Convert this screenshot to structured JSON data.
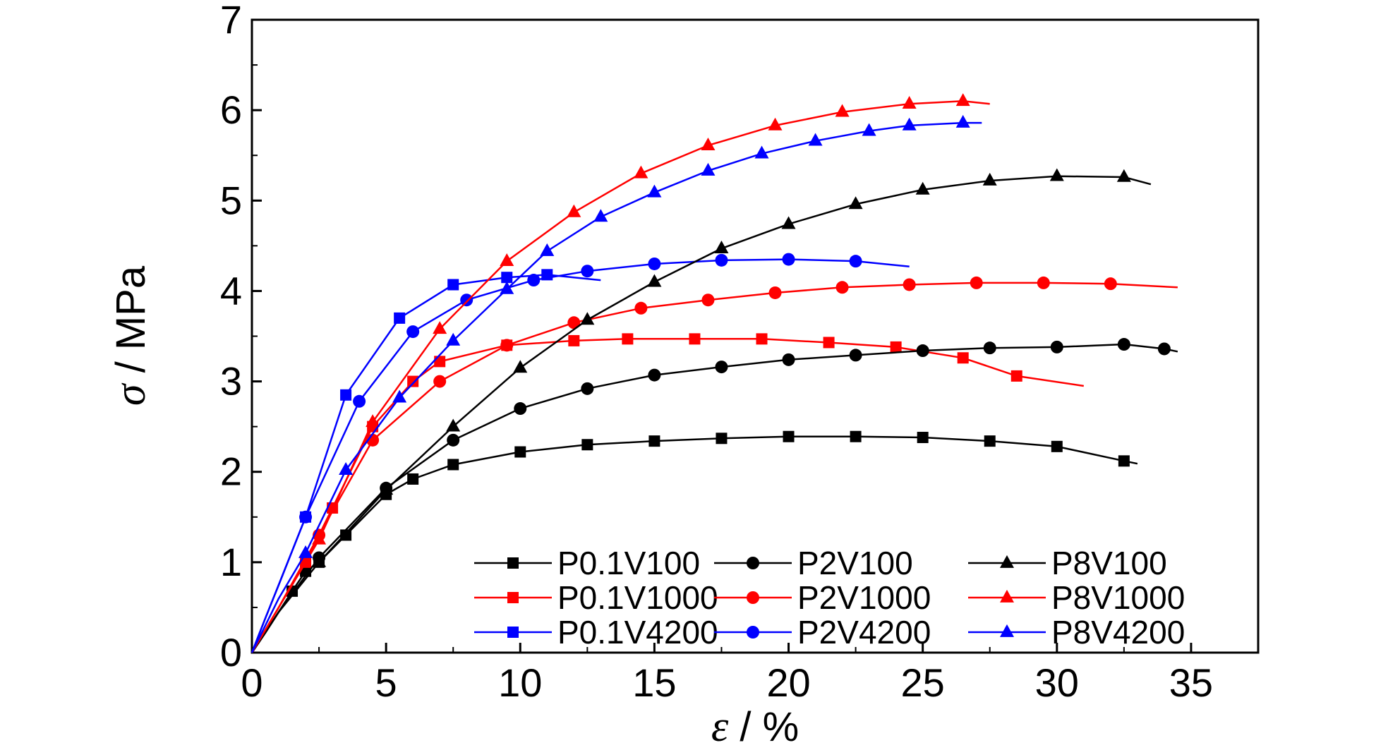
{
  "chart_data": {
    "type": "line",
    "xlabel": {
      "symbol": "ε",
      "rest": " / %"
    },
    "ylabel": {
      "symbol": "σ",
      "rest": " / MPa"
    },
    "xlim": [
      0,
      37.5
    ],
    "ylim": [
      0,
      7
    ],
    "xticks": [
      0,
      5,
      10,
      15,
      20,
      25,
      30,
      35
    ],
    "yticks": [
      0,
      1,
      2,
      3,
      4,
      5,
      6,
      7
    ],
    "grid": false,
    "legend_position": "bottom-right",
    "series": [
      {
        "name": "P0.1V100",
        "color": "#000000",
        "marker": "square",
        "x": [
          0,
          0.5,
          1,
          1.5,
          2,
          2.5,
          3.5,
          5,
          6,
          7.5,
          10,
          12.5,
          15,
          17.5,
          20,
          22.5,
          25,
          27.5,
          30,
          32.5,
          33
        ],
        "y": [
          0,
          0.22,
          0.45,
          0.68,
          0.9,
          1.0,
          1.3,
          1.75,
          1.92,
          2.08,
          2.22,
          2.3,
          2.34,
          2.37,
          2.39,
          2.39,
          2.38,
          2.34,
          2.28,
          2.12,
          2.09
        ]
      },
      {
        "name": "P0.1V1000",
        "color": "#ff0000",
        "marker": "square",
        "x": [
          0,
          0.5,
          1,
          2,
          3,
          4.5,
          6,
          7,
          9.5,
          12,
          14,
          16.5,
          19,
          21.5,
          24,
          26.5,
          28.5,
          31
        ],
        "y": [
          0,
          0.25,
          0.5,
          1.0,
          1.6,
          2.5,
          3.0,
          3.22,
          3.4,
          3.45,
          3.47,
          3.47,
          3.47,
          3.43,
          3.38,
          3.26,
          3.06,
          2.95
        ]
      },
      {
        "name": "P0.1V4200",
        "color": "#0000ff",
        "marker": "square",
        "x": [
          0,
          0.5,
          1,
          2,
          3.5,
          5.5,
          7.5,
          9.5,
          11,
          13
        ],
        "y": [
          0,
          0.38,
          0.75,
          1.5,
          2.85,
          3.7,
          4.07,
          4.15,
          4.18,
          4.12
        ]
      },
      {
        "name": "P2V100",
        "color": "#000000",
        "marker": "circle",
        "x": [
          0,
          0.5,
          1,
          2.5,
          5,
          7.5,
          10,
          12.5,
          15,
          17.5,
          20,
          22.5,
          25,
          27.5,
          30,
          32.5,
          34,
          34.5
        ],
        "y": [
          0,
          0.22,
          0.45,
          1.05,
          1.82,
          2.35,
          2.7,
          2.92,
          3.07,
          3.16,
          3.24,
          3.29,
          3.34,
          3.37,
          3.38,
          3.41,
          3.36,
          3.33
        ]
      },
      {
        "name": "P2V1000",
        "color": "#ff0000",
        "marker": "circle",
        "x": [
          0,
          0.5,
          1,
          2.5,
          4.5,
          7,
          9.5,
          12,
          14.5,
          17,
          19.5,
          22,
          24.5,
          27,
          29.5,
          32,
          34.5
        ],
        "y": [
          0,
          0.25,
          0.5,
          1.3,
          2.35,
          3.0,
          3.4,
          3.65,
          3.81,
          3.9,
          3.98,
          4.04,
          4.07,
          4.09,
          4.09,
          4.08,
          4.04
        ]
      },
      {
        "name": "P2V4200",
        "color": "#0000ff",
        "marker": "circle",
        "x": [
          0,
          0.5,
          1,
          2,
          4,
          6,
          8,
          10.5,
          12.5,
          15,
          17.5,
          20,
          22.5,
          24.5
        ],
        "y": [
          0,
          0.38,
          0.75,
          1.5,
          2.78,
          3.55,
          3.9,
          4.12,
          4.22,
          4.3,
          4.34,
          4.35,
          4.33,
          4.27
        ]
      },
      {
        "name": "P8V100",
        "color": "#000000",
        "marker": "triangle",
        "x": [
          0,
          0.5,
          1,
          2.5,
          5,
          7.5,
          10,
          12.5,
          15,
          17.5,
          20,
          22.5,
          25,
          27.5,
          30,
          32.5,
          33.5
        ],
        "y": [
          0,
          0.22,
          0.45,
          1.0,
          1.8,
          2.5,
          3.15,
          3.68,
          4.1,
          4.47,
          4.74,
          4.96,
          5.12,
          5.22,
          5.27,
          5.26,
          5.18
        ]
      },
      {
        "name": "P8V1000",
        "color": "#ff0000",
        "marker": "triangle",
        "x": [
          0,
          0.5,
          1,
          2.5,
          4.5,
          7,
          9.5,
          12,
          14.5,
          17,
          19.5,
          22,
          24.5,
          26.5,
          27.5
        ],
        "y": [
          0,
          0.25,
          0.5,
          1.25,
          2.55,
          3.58,
          4.33,
          4.87,
          5.3,
          5.61,
          5.83,
          5.98,
          6.07,
          6.1,
          6.07
        ]
      },
      {
        "name": "P8V4200",
        "color": "#0000ff",
        "marker": "triangle",
        "x": [
          0,
          0.5,
          1,
          2,
          3.5,
          5.5,
          7.5,
          9.5,
          11,
          13,
          15,
          17,
          19,
          21,
          23,
          24.5,
          26.5,
          27.2
        ],
        "y": [
          0,
          0.3,
          0.6,
          1.1,
          2.02,
          2.82,
          3.45,
          4.02,
          4.44,
          4.82,
          5.09,
          5.33,
          5.52,
          5.66,
          5.77,
          5.83,
          5.86,
          5.86
        ]
      }
    ]
  }
}
